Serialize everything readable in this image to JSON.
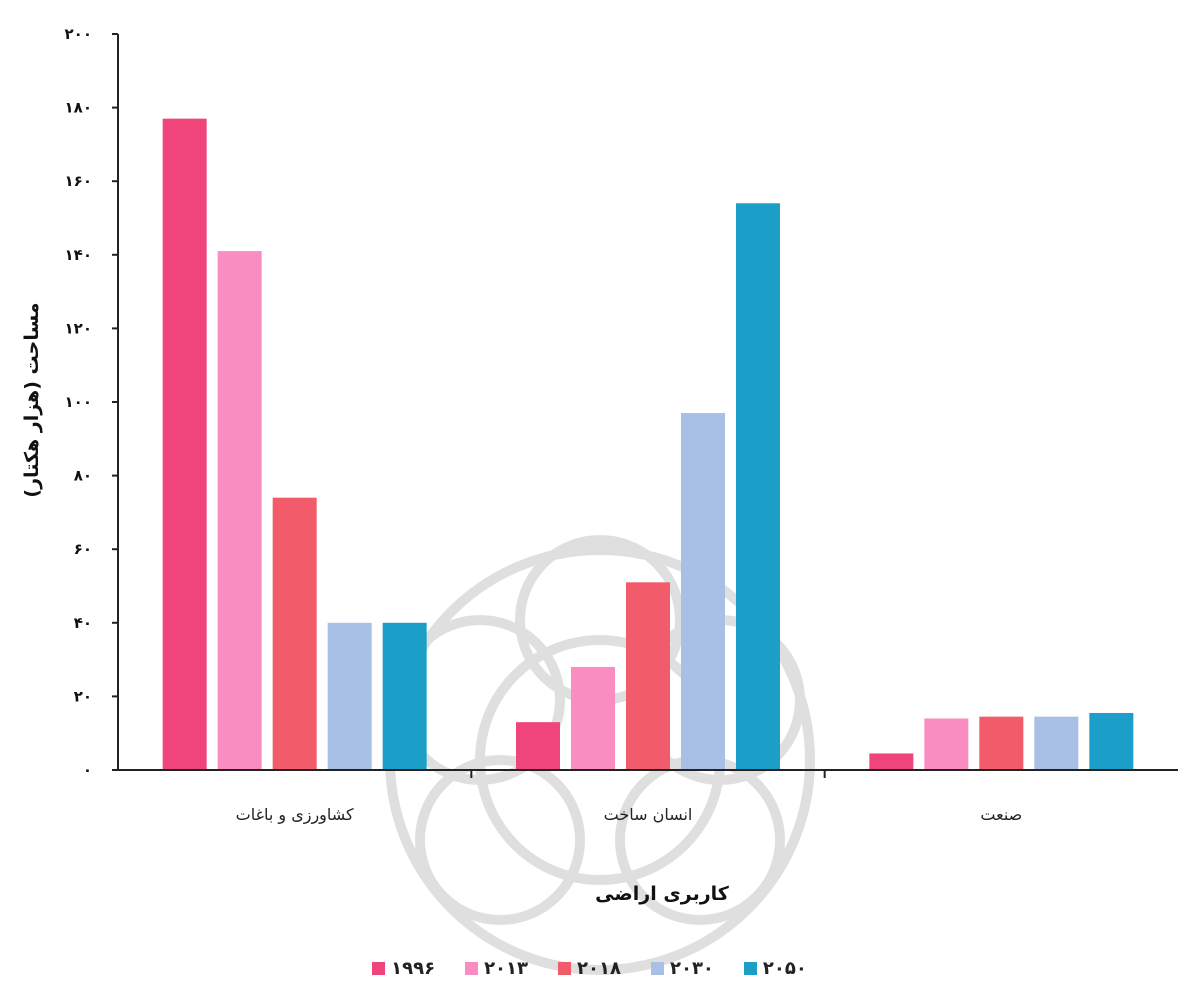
{
  "chart_data": {
    "type": "bar",
    "title": "",
    "xlabel": "کاربری اراضی",
    "ylabel": "مساحت (هزار هکتار)",
    "ylim": [
      0,
      200
    ],
    "yticks": [
      "۰",
      "۲۰",
      "۴۰",
      "۶۰",
      "۸۰",
      "۱۰۰",
      "۱۲۰",
      "۱۴۰",
      "۱۶۰",
      "۱۸۰",
      "۲۰۰"
    ],
    "categories": [
      "کشاورزی و باغات",
      "انسان ساخت",
      "صنعت"
    ],
    "series": [
      {
        "name": "۱۹۹۶",
        "color": "#f0457a",
        "values": [
          177,
          13,
          4.5
        ]
      },
      {
        "name": "۲۰۱۳",
        "color": "#f98cc0",
        "values": [
          141,
          28,
          14
        ]
      },
      {
        "name": "۲۰۱۸",
        "color": "#f25c6a",
        "values": [
          74,
          51,
          14.5
        ]
      },
      {
        "name": "۲۰۳۰",
        "color": "#a8c0e6",
        "values": [
          40,
          97,
          14.5
        ]
      },
      {
        "name": "۲۰۵۰",
        "color": "#1b9fc9",
        "values": [
          40,
          154,
          15.5
        ]
      }
    ],
    "grid": false,
    "legend_position": "bottom"
  }
}
